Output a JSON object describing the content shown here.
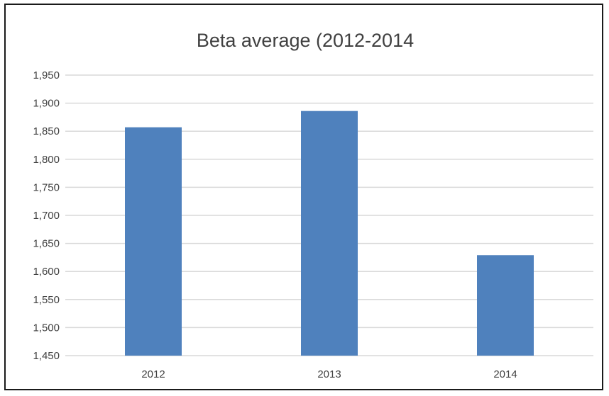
{
  "chart_data": {
    "type": "bar",
    "title": "Beta average (2012-2014",
    "xlabel": "",
    "ylabel": "",
    "categories": [
      "2012",
      "2013",
      "2014"
    ],
    "values": [
      1.857,
      1.886,
      1.629
    ],
    "ylim": [
      1.45,
      1.95
    ],
    "yticks": [
      1.45,
      1.5,
      1.55,
      1.6,
      1.65,
      1.7,
      1.75,
      1.8,
      1.85,
      1.9,
      1.95
    ],
    "ytick_labels": [
      "1,450",
      "1,500",
      "1,550",
      "1,600",
      "1,650",
      "1,700",
      "1,750",
      "1,800",
      "1,850",
      "1,900",
      "1,950"
    ],
    "grid": true,
    "legend": "none",
    "bar_color": "#4f81bd",
    "gridline_color": "#d9d9d9"
  }
}
